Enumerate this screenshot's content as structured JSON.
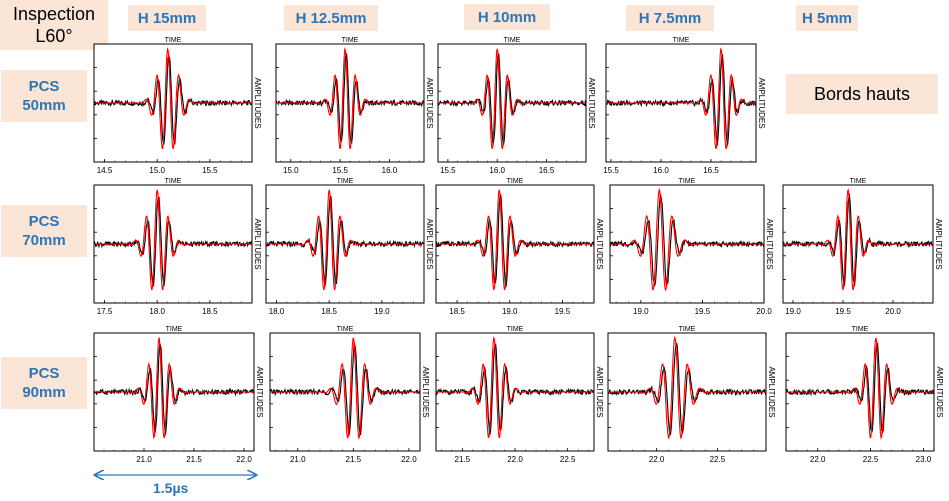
{
  "header": {
    "inspection": "Inspection\nL60°",
    "columns": [
      "H 15mm",
      "H 12.5mm",
      "H 10mm",
      "H 7.5mm",
      "H 5mm"
    ],
    "rows": [
      "PCS\n50mm",
      "PCS\n70mm",
      "PCS\n90mm"
    ],
    "note": "Bords hauts"
  },
  "scale_annotation": "1.5µs",
  "colors": {
    "measured": "#000000",
    "simulated": "#ff0000",
    "label_bg": "#fbe5d6",
    "label_text": "#2e75b6"
  },
  "chart_data": [
    {
      "type": "line",
      "row": "PCS 50mm",
      "col": "H 15mm",
      "title": "TIME",
      "ylabel": "AMPLITUDES",
      "xlim": [
        14.4,
        15.9
      ],
      "xticks": [
        14.5,
        15.0,
        15.5
      ],
      "center": 15.1,
      "series": [
        {
          "color": "measured"
        },
        {
          "color": "simulated"
        }
      ]
    },
    {
      "type": "line",
      "row": "PCS 50mm",
      "col": "H 12.5mm",
      "title": "TIME",
      "ylabel": "AMPLITUDES",
      "xlim": [
        14.85,
        16.35
      ],
      "xticks": [
        15.0,
        15.5,
        16.0
      ],
      "center": 15.55,
      "series": [
        {
          "color": "measured"
        },
        {
          "color": "simulated"
        }
      ]
    },
    {
      "type": "line",
      "row": "PCS 50mm",
      "col": "H 10mm",
      "title": "TIME",
      "ylabel": "AMPLITUDES",
      "xlim": [
        15.4,
        16.9
      ],
      "xticks": [
        15.5,
        16.0,
        16.5
      ],
      "center": 16.0,
      "series": [
        {
          "color": "measured"
        },
        {
          "color": "simulated"
        }
      ]
    },
    {
      "type": "line",
      "row": "PCS 50mm",
      "col": "H 7.5mm",
      "title": "TIME",
      "ylabel": "AMPLITUDES",
      "xlim": [
        15.45,
        16.95
      ],
      "xticks": [
        15.5,
        16.0,
        16.5
      ],
      "center": 16.6,
      "series": [
        {
          "color": "measured"
        },
        {
          "color": "simulated"
        }
      ]
    },
    {
      "type": "line",
      "row": "PCS 70mm",
      "col": "H 15mm",
      "title": "TIME",
      "ylabel": "AMPLITUDES",
      "xlim": [
        17.4,
        18.9
      ],
      "xticks": [
        17.5,
        18.0,
        18.5
      ],
      "center": 18.0,
      "series": [
        {
          "color": "measured"
        },
        {
          "color": "simulated"
        }
      ]
    },
    {
      "type": "line",
      "row": "PCS 70mm",
      "col": "H 12.5mm",
      "title": "TIME",
      "ylabel": "AMPLITUDES",
      "xlim": [
        17.9,
        19.4
      ],
      "xticks": [
        18.0,
        18.5,
        19.0
      ],
      "center": 18.5,
      "series": [
        {
          "color": "measured"
        },
        {
          "color": "simulated"
        }
      ]
    },
    {
      "type": "line",
      "row": "PCS 70mm",
      "col": "H 10mm",
      "title": "TIME",
      "ylabel": "AMPLITUDES",
      "xlim": [
        18.3,
        19.8
      ],
      "xticks": [
        18.5,
        19.0,
        19.5
      ],
      "center": 18.9,
      "series": [
        {
          "color": "measured"
        },
        {
          "color": "simulated"
        }
      ]
    },
    {
      "type": "line",
      "row": "PCS 70mm",
      "col": "H 7.5mm",
      "title": "TIME",
      "ylabel": "AMPLITUDES",
      "xlim": [
        18.75,
        20.0
      ],
      "xticks": [
        19.0,
        19.5,
        20.0
      ],
      "center": 19.15,
      "series": [
        {
          "color": "measured"
        },
        {
          "color": "simulated"
        }
      ]
    },
    {
      "type": "line",
      "row": "PCS 70mm",
      "col": "H 5mm",
      "title": "TIME",
      "ylabel": "AMPLITUDES",
      "xlim": [
        18.9,
        20.4
      ],
      "xticks": [
        19.0,
        19.5,
        20.0
      ],
      "center": 19.55,
      "series": [
        {
          "color": "measured"
        },
        {
          "color": "simulated"
        }
      ]
    },
    {
      "type": "line",
      "row": "PCS 90mm",
      "col": "H 15mm",
      "title": "TIME",
      "ylabel": "AMPLITUDES",
      "xlim": [
        20.5,
        22.1
      ],
      "xticks": [
        21.0,
        21.5,
        22.0
      ],
      "center": 21.15,
      "series": [
        {
          "color": "measured"
        },
        {
          "color": "simulated"
        }
      ]
    },
    {
      "type": "line",
      "row": "PCS 90mm",
      "col": "H 12.5mm",
      "title": "TIME",
      "ylabel": "AMPLITUDES",
      "xlim": [
        20.75,
        22.1
      ],
      "xticks": [
        21.0,
        21.5,
        22.0
      ],
      "center": 21.5,
      "series": [
        {
          "color": "measured"
        },
        {
          "color": "simulated"
        }
      ]
    },
    {
      "type": "line",
      "row": "PCS 90mm",
      "col": "H 10mm",
      "title": "TIME",
      "ylabel": "AMPLITUDES",
      "xlim": [
        21.25,
        22.75
      ],
      "xticks": [
        21.5,
        22.0,
        22.5
      ],
      "center": 21.8,
      "series": [
        {
          "color": "measured"
        },
        {
          "color": "simulated"
        }
      ]
    },
    {
      "type": "line",
      "row": "PCS 90mm",
      "col": "H 7.5mm",
      "title": "TIME",
      "ylabel": "AMPLITUDES",
      "xlim": [
        21.6,
        22.9
      ],
      "xticks": [
        22.0,
        22.5
      ],
      "center": 22.15,
      "series": [
        {
          "color": "measured"
        },
        {
          "color": "simulated"
        }
      ]
    },
    {
      "type": "line",
      "row": "PCS 90mm",
      "col": "H 5mm",
      "title": "TIME",
      "ylabel": "AMPLITUDES",
      "xlim": [
        21.7,
        23.1
      ],
      "xticks": [
        22.0,
        22.5,
        23.0
      ],
      "center": 22.55,
      "series": [
        {
          "color": "measured"
        },
        {
          "color": "simulated"
        }
      ]
    }
  ]
}
